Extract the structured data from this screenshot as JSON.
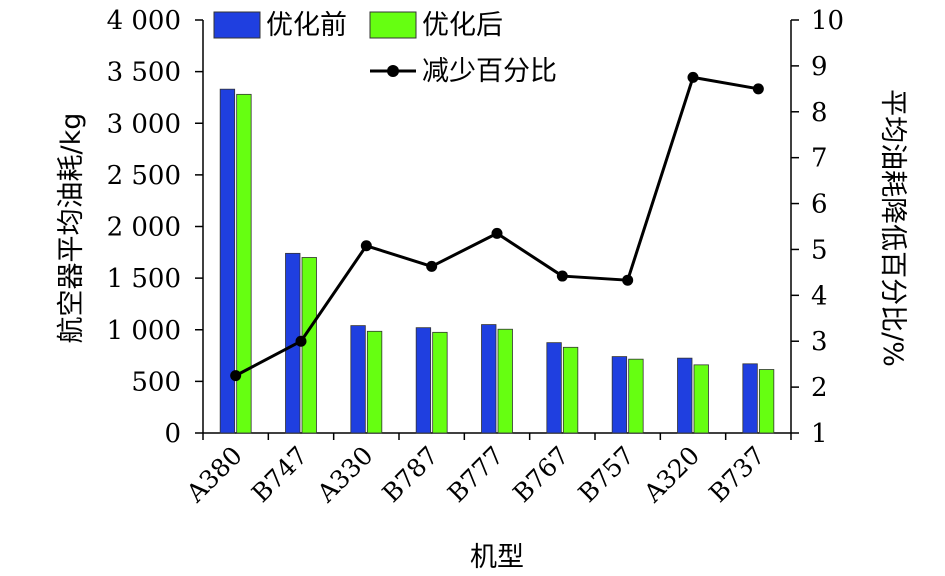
{
  "chart_data": {
    "type": "bar",
    "categories": [
      "A380",
      "B747",
      "A330",
      "B787",
      "B777",
      "B767",
      "B757",
      "A320",
      "B737"
    ],
    "series": [
      {
        "name": "优化前",
        "type": "bar",
        "axis": "left",
        "color": "#1f3fe0",
        "values": [
          3330,
          1740,
          1040,
          1020,
          1050,
          875,
          740,
          725,
          670
        ]
      },
      {
        "name": "优化后",
        "type": "bar",
        "axis": "left",
        "color": "#66ff11",
        "values": [
          3280,
          1700,
          985,
          975,
          1005,
          830,
          715,
          660,
          615
        ]
      },
      {
        "name": "减少百分比",
        "type": "line",
        "axis": "right",
        "color": "#000000",
        "values": [
          2.25,
          3.0,
          5.08,
          4.63,
          5.35,
          4.42,
          4.33,
          8.75,
          8.5
        ]
      }
    ],
    "xlabel": "机型",
    "ylabel": "航空器平均油耗/kg",
    "y2label": "平均油耗降低百分比/%",
    "ylim": [
      0,
      4000
    ],
    "y2lim": [
      1,
      10
    ],
    "yticks": [
      "0",
      "500",
      "1 000",
      "1 500",
      "2 000",
      "2 500",
      "3 000",
      "3 500",
      "4 000"
    ],
    "y2ticks": [
      "1",
      "2",
      "3",
      "4",
      "5",
      "6",
      "7",
      "8",
      "9",
      "10"
    ],
    "grid": false,
    "legend": "top"
  }
}
